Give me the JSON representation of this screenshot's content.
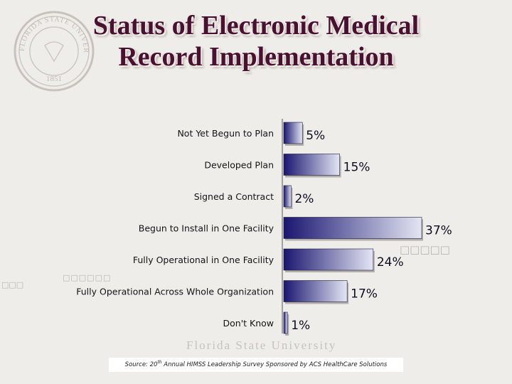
{
  "slide": {
    "title_line1": "Status of Electronic Medical",
    "title_line2": "Record Implementation",
    "source_prefix": "Source: 20",
    "source_sup": "th",
    "source_suffix": " Annual HIMSS Leadership Survey Sponsored by ACS HealthCare Solutions",
    "watermark": "Florida State University",
    "seal_year": "1851",
    "seal_name": "FLORIDA STATE UNIVERSITY"
  },
  "colors": {
    "bar_dark": "#1a1670",
    "bar_light": "#e4e6f4",
    "label": "#141414",
    "value": "#0d0d20",
    "title": "#4a1030"
  },
  "chart_data": {
    "type": "bar",
    "orientation": "horizontal",
    "categories": [
      "Not Yet Begun to Plan",
      "Developed Plan",
      "Signed a Contract",
      "Begun to Install in One Facility",
      "Fully Operational in One Facility",
      "Fully Operational Across Whole Organization",
      "Don't Know"
    ],
    "values": [
      5,
      15,
      2,
      37,
      24,
      17,
      1
    ],
    "value_labels": [
      "5%",
      "15%",
      "2%",
      "37%",
      "24%",
      "17%",
      "1%"
    ],
    "xlim": [
      0,
      37
    ],
    "unit": "%",
    "grid": false,
    "legend": "none"
  }
}
